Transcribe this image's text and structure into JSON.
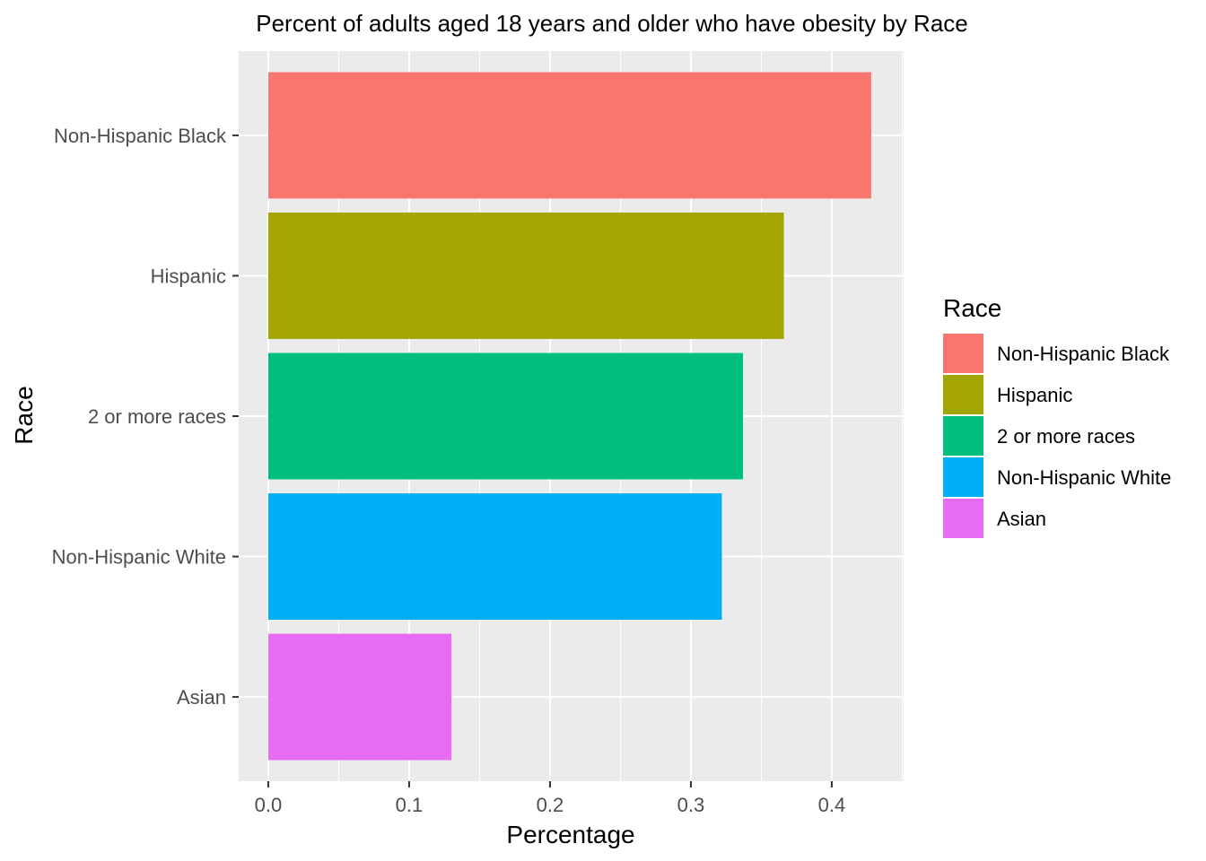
{
  "chart_data": {
    "type": "bar",
    "orientation": "horizontal",
    "title": "Percent of adults aged 18 years and older who have obesity by Race",
    "xlabel": "Percentage",
    "ylabel": "Race",
    "xlim": [
      -0.021,
      0.451
    ],
    "xticks": [
      0.0,
      0.1,
      0.2,
      0.3,
      0.4
    ],
    "xtick_labels": [
      "0.0",
      "0.1",
      "0.2",
      "0.3",
      "0.4"
    ],
    "grid": true,
    "legend_position": "right",
    "legend_title": "Race",
    "categories": [
      "Non-Hispanic Black",
      "Hispanic",
      "2 or more races",
      "Non-Hispanic White",
      "Asian"
    ],
    "values": [
      0.428,
      0.366,
      0.337,
      0.322,
      0.13
    ],
    "colors": [
      "#F8766D",
      "#A3A500",
      "#00BF7D",
      "#00B0F6",
      "#E76BF3"
    ]
  },
  "colors": {
    "panel_background": "#EBEBEB",
    "grid_major": "#FFFFFF",
    "tick_text": "#4D4D4D",
    "tick_mark": "#333333"
  }
}
